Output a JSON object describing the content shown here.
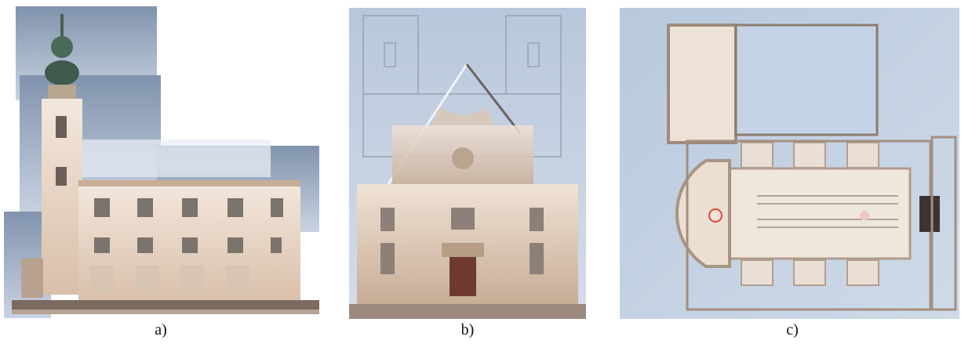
{
  "figure": {
    "panels": [
      {
        "id": "a",
        "caption": "a)",
        "subject": "church-side-elevation-point-cloud"
      },
      {
        "id": "b",
        "caption": "b)",
        "subject": "church-front-facade-point-cloud"
      },
      {
        "id": "c",
        "caption": "c)",
        "subject": "church-floor-plan-point-cloud"
      }
    ]
  },
  "colors": {
    "sky_top": "#7f93b0",
    "sky_bottom": "#c7d2e2",
    "wall": "#ead8c8",
    "wall_shadow": "#c9ad96",
    "dome_green": "#3f5a4c",
    "plan_bg": "#c8d6e6"
  }
}
